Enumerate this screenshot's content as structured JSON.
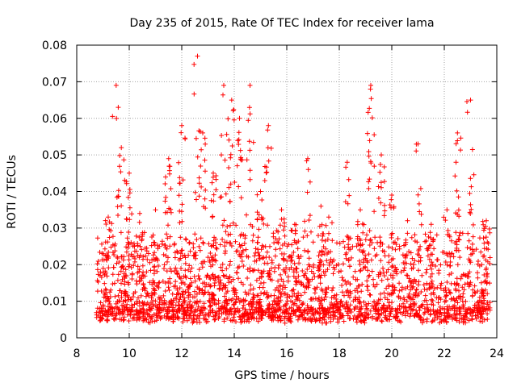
{
  "chart_data": {
    "type": "scatter",
    "title": "Day 235 of 2015, Rate Of TEC Index for receiver lama",
    "xlabel": "GPS time / hours",
    "ylabel": "ROTI / TECUs",
    "xlim": [
      8,
      24
    ],
    "ylim": [
      0,
      0.08
    ],
    "xticks": [
      8,
      10,
      12,
      14,
      16,
      18,
      20,
      22,
      24
    ],
    "xtick_labels": [
      "8",
      "10",
      "12",
      "14",
      "16",
      "18",
      "20",
      "22",
      "24"
    ],
    "yticks": [
      0,
      0.01,
      0.02,
      0.03,
      0.04,
      0.05,
      0.06,
      0.07,
      0.08
    ],
    "ytick_labels": [
      "0",
      "0.01",
      "0.02",
      "0.03",
      "0.04",
      "0.05",
      "0.06",
      "0.07",
      "0.08"
    ],
    "grid": true,
    "marker": "+",
    "color": "#ff0000",
    "data_range": {
      "x_min": 8.75,
      "x_max": 23.75
    },
    "peaks": [
      {
        "x": 9.2,
        "y": 0.033
      },
      {
        "x": 9.5,
        "y": 0.069
      },
      {
        "x": 9.7,
        "y": 0.052
      },
      {
        "x": 10.0,
        "y": 0.045
      },
      {
        "x": 10.4,
        "y": 0.034
      },
      {
        "x": 11.0,
        "y": 0.035
      },
      {
        "x": 11.5,
        "y": 0.049
      },
      {
        "x": 12.0,
        "y": 0.058
      },
      {
        "x": 12.6,
        "y": 0.077
      },
      {
        "x": 12.8,
        "y": 0.056
      },
      {
        "x": 13.2,
        "y": 0.045
      },
      {
        "x": 13.6,
        "y": 0.069
      },
      {
        "x": 13.9,
        "y": 0.065
      },
      {
        "x": 14.2,
        "y": 0.06
      },
      {
        "x": 14.6,
        "y": 0.069
      },
      {
        "x": 15.0,
        "y": 0.04
      },
      {
        "x": 15.3,
        "y": 0.058
      },
      {
        "x": 15.8,
        "y": 0.035
      },
      {
        "x": 16.3,
        "y": 0.031
      },
      {
        "x": 16.8,
        "y": 0.049
      },
      {
        "x": 17.3,
        "y": 0.036
      },
      {
        "x": 17.6,
        "y": 0.033
      },
      {
        "x": 18.3,
        "y": 0.048
      },
      {
        "x": 18.8,
        "y": 0.035
      },
      {
        "x": 19.2,
        "y": 0.069
      },
      {
        "x": 19.6,
        "y": 0.05
      },
      {
        "x": 20.0,
        "y": 0.039
      },
      {
        "x": 20.6,
        "y": 0.032
      },
      {
        "x": 21.0,
        "y": 0.053
      },
      {
        "x": 21.5,
        "y": 0.031
      },
      {
        "x": 22.1,
        "y": 0.035
      },
      {
        "x": 22.5,
        "y": 0.056
      },
      {
        "x": 23.0,
        "y": 0.065
      },
      {
        "x": 23.6,
        "y": 0.032
      }
    ],
    "baseline": {
      "typical_min": 0.004,
      "typical_median": 0.011
    }
  }
}
